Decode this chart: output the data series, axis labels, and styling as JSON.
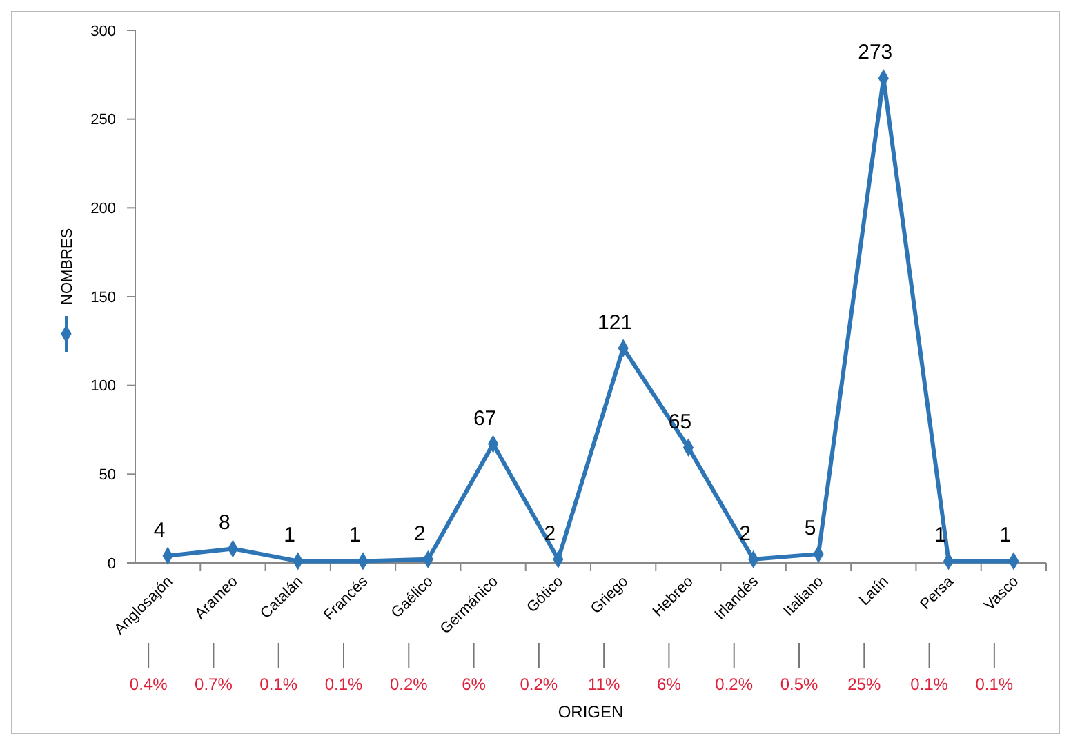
{
  "chart_data": {
    "type": "line",
    "xlabel": "ORIGEN",
    "categories": [
      "Anglosajón",
      "Arameo",
      "Catalán",
      "Francés",
      "Gaélico",
      "Germánico",
      "Gótico",
      "Griego",
      "Hebreo",
      "Irlandés",
      "Italiano",
      "Latín",
      "Persa",
      "Vasco"
    ],
    "series": [
      {
        "name": "NOMBRES",
        "color": "#2e75b6",
        "values": [
          4,
          8,
          1,
          1,
          2,
          67,
          2,
          121,
          65,
          2,
          5,
          273,
          1,
          1
        ]
      }
    ],
    "ylim": [
      0,
      300
    ],
    "yticks": [
      0,
      50,
      100,
      150,
      200,
      250,
      300
    ],
    "grid": false,
    "legend": "left",
    "marker": "diamond",
    "line_style": "solid",
    "data_labels": true,
    "annotations": [
      "0.4%",
      "0.7%",
      "0.1%",
      "0.1%",
      "0.2%",
      "6%",
      "0.2%",
      "11%",
      "6%",
      "0.2%",
      "0.5%",
      "25%",
      "0.1%",
      "0.1%"
    ]
  }
}
